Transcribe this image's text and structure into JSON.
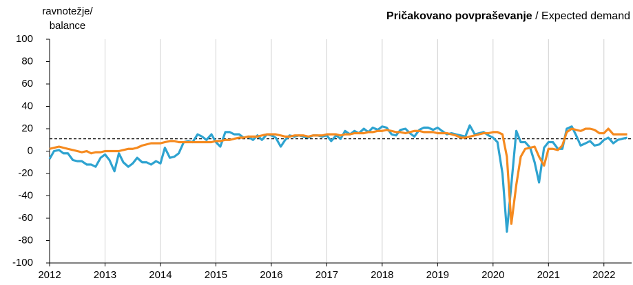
{
  "chart_data": {
    "type": "line",
    "title": {
      "bold": "Pričakovano povpraševanje",
      "regular": " / Expected demand"
    },
    "y_label": [
      "ravnotežje/",
      "balance"
    ],
    "x": [
      2012,
      2012.08,
      2012.17,
      2012.25,
      2012.33,
      2012.42,
      2012.5,
      2012.58,
      2012.67,
      2012.75,
      2012.83,
      2012.92,
      2013,
      2013.08,
      2013.17,
      2013.25,
      2013.33,
      2013.42,
      2013.5,
      2013.58,
      2013.67,
      2013.75,
      2013.83,
      2013.92,
      2014,
      2014.08,
      2014.17,
      2014.25,
      2014.33,
      2014.42,
      2014.5,
      2014.58,
      2014.67,
      2014.75,
      2014.83,
      2014.92,
      2015,
      2015.08,
      2015.17,
      2015.25,
      2015.33,
      2015.42,
      2015.5,
      2015.58,
      2015.67,
      2015.75,
      2015.83,
      2015.92,
      2016,
      2016.08,
      2016.17,
      2016.25,
      2016.33,
      2016.42,
      2016.5,
      2016.58,
      2016.67,
      2016.75,
      2016.83,
      2016.92,
      2017,
      2017.08,
      2017.17,
      2017.25,
      2017.33,
      2017.42,
      2017.5,
      2017.58,
      2017.67,
      2017.75,
      2017.83,
      2017.92,
      2018,
      2018.08,
      2018.17,
      2018.25,
      2018.33,
      2018.42,
      2018.5,
      2018.58,
      2018.67,
      2018.75,
      2018.83,
      2018.92,
      2019,
      2019.08,
      2019.17,
      2019.25,
      2019.33,
      2019.42,
      2019.5,
      2019.58,
      2019.67,
      2019.75,
      2019.83,
      2019.92,
      2020,
      2020.08,
      2020.17,
      2020.25,
      2020.33,
      2020.42,
      2020.5,
      2020.58,
      2020.67,
      2020.75,
      2020.83,
      2020.92,
      2021,
      2021.08,
      2021.17,
      2021.25,
      2021.33,
      2021.42,
      2021.5,
      2021.58,
      2021.67,
      2021.75,
      2021.83,
      2021.92,
      2022,
      2022.08,
      2022.17,
      2022.25,
      2022.33,
      2022.42
    ],
    "series": [
      {
        "color": "#2ea3d0",
        "values": [
          -7,
          0,
          1,
          -2,
          -2,
          -8,
          -9,
          -9,
          -12,
          -12,
          -14,
          -6,
          -3,
          -8,
          -18,
          -2,
          -10,
          -14,
          -11,
          -6,
          -10,
          -10,
          -12,
          -9,
          -11,
          3,
          -6,
          -5,
          -2,
          8,
          9,
          8,
          15,
          13,
          10,
          15,
          8,
          4,
          17,
          17,
          15,
          15,
          12,
          13,
          10,
          14,
          10,
          15,
          14,
          12,
          4,
          10,
          14,
          13,
          14,
          13,
          12,
          14,
          14,
          13,
          14,
          9,
          14,
          11,
          18,
          15,
          18,
          16,
          20,
          17,
          21,
          19,
          22,
          21,
          15,
          14,
          19,
          20,
          16,
          13,
          19,
          21,
          21,
          19,
          21,
          18,
          15,
          16,
          15,
          14,
          13,
          23,
          15,
          16,
          17,
          14,
          12,
          8,
          -20,
          -72,
          -30,
          18,
          8,
          8,
          3,
          -10,
          -28,
          3,
          8,
          8,
          2,
          2,
          20,
          22,
          14,
          5,
          7,
          9,
          5,
          6,
          10,
          12,
          7,
          10,
          11,
          12
        ]
      },
      {
        "color": "#f58a1f",
        "values": [
          2,
          3,
          4,
          3,
          2,
          1,
          0,
          -1,
          0,
          -2,
          -1,
          -1,
          0,
          0,
          0,
          0,
          1,
          2,
          2,
          3,
          5,
          6,
          7,
          7,
          7,
          8,
          9,
          9,
          8,
          8,
          8,
          8,
          8,
          8,
          8,
          8,
          9,
          9,
          10,
          10,
          11,
          12,
          12,
          13,
          13,
          13,
          14,
          15,
          15,
          15,
          14,
          13,
          13,
          14,
          14,
          14,
          13,
          14,
          14,
          14,
          15,
          15,
          15,
          14,
          15,
          15,
          16,
          16,
          16,
          17,
          17,
          18,
          18,
          19,
          18,
          17,
          17,
          16,
          17,
          18,
          18,
          17,
          17,
          17,
          16,
          16,
          16,
          15,
          14,
          12,
          12,
          13,
          14,
          15,
          16,
          16,
          17,
          17,
          15,
          -5,
          -65,
          -30,
          -5,
          2,
          3,
          4,
          -5,
          -13,
          2,
          2,
          1,
          5,
          17,
          20,
          19,
          18,
          20,
          20,
          19,
          16,
          16,
          20,
          15,
          15,
          15,
          15
        ]
      }
    ],
    "reference_line": 11,
    "xlim": [
      2012,
      2022.5
    ],
    "xticks": [
      2012,
      2013,
      2014,
      2015,
      2016,
      2017,
      2018,
      2019,
      2020,
      2021,
      2022
    ],
    "ylim": [
      -100,
      100
    ],
    "yticks": [
      -100,
      -80,
      -60,
      -40,
      -20,
      0,
      20,
      40,
      60,
      80,
      100
    ],
    "grid": "x"
  }
}
